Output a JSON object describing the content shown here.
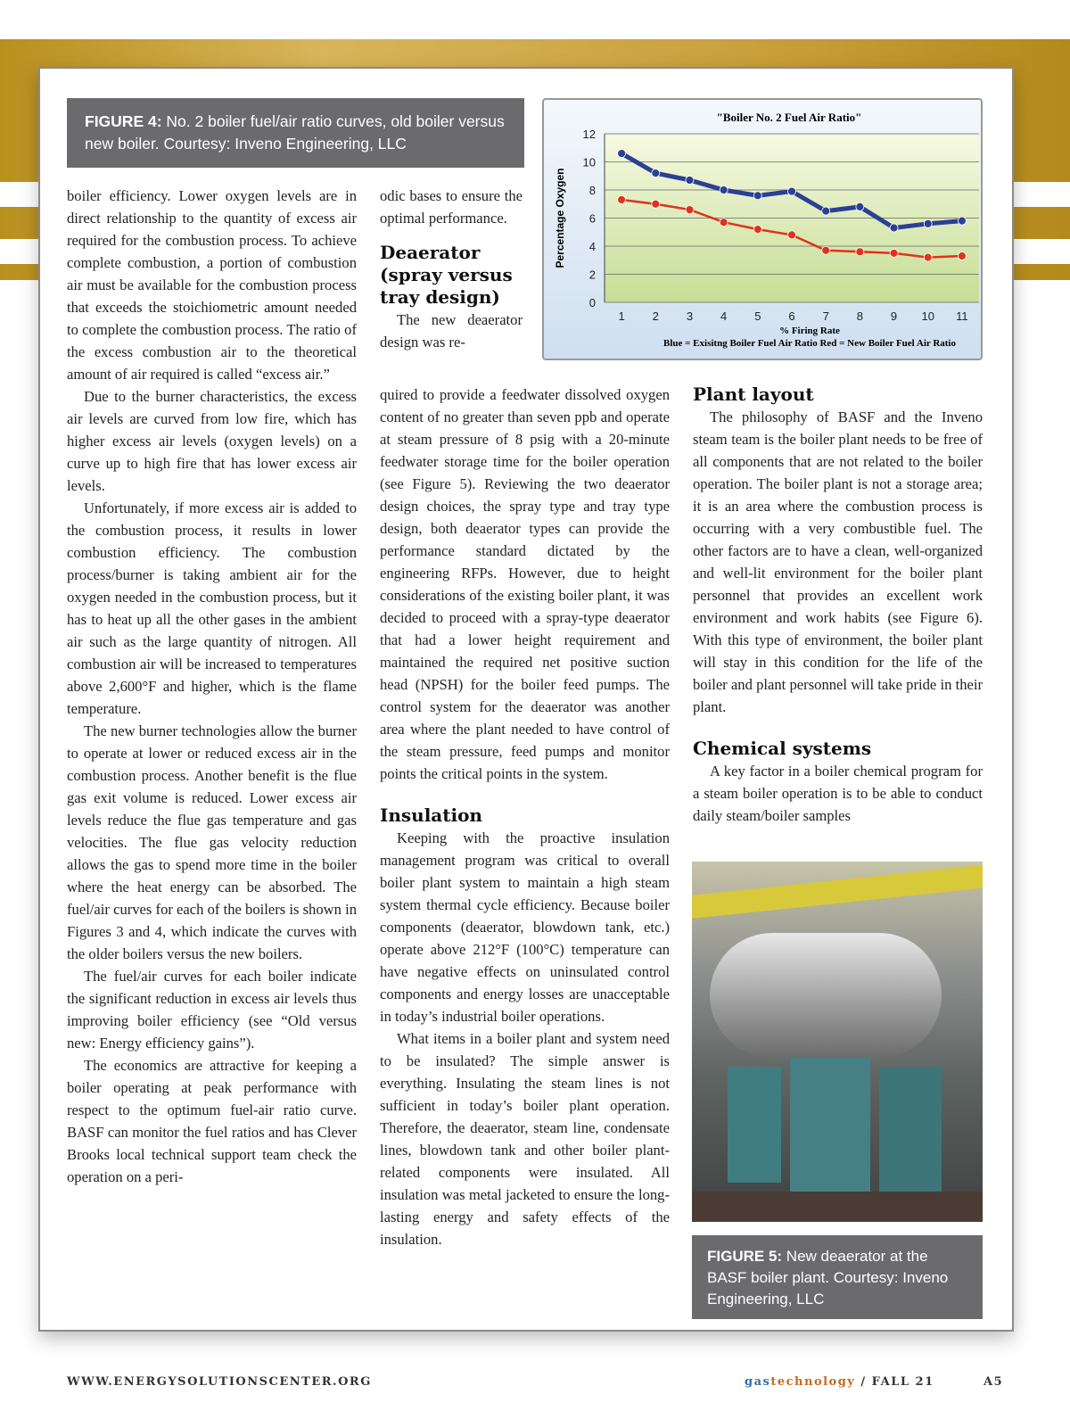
{
  "figure4_caption": {
    "label": "FIGURE 4:",
    "text": " No. 2 boiler fuel/air ratio curves, old boiler versus new boiler. Courtesy: Inveno Engineering, LLC"
  },
  "figure5_caption": {
    "label": "FIGURE 5:",
    "text": " New deaerator at the BASF boiler plant. Courtesy: Inveno Engineering, LLC"
  },
  "chart_data": {
    "type": "line",
    "title": "\"Boiler No. 2 Fuel Air Ratio\"",
    "xlabel": "% Firing Rate",
    "ylabel": "Percentage Oxygen",
    "note": "Blue = Exisitng Boiler Fuel Air Ratio      Red = New Boiler Fuel Air Ratio",
    "categories": [
      1,
      2,
      3,
      4,
      5,
      6,
      7,
      8,
      9,
      10,
      11
    ],
    "ylim": [
      0,
      12
    ],
    "yticks": [
      0,
      2,
      4,
      6,
      8,
      10,
      12
    ],
    "grid": true,
    "series": [
      {
        "color": "#2b3f95",
        "values": [
          10.6,
          9.2,
          8.7,
          8.0,
          7.6,
          7.9,
          6.5,
          6.8,
          5.3,
          5.6,
          5.8
        ]
      },
      {
        "color": "#e0321c",
        "values": [
          7.3,
          7.0,
          6.6,
          5.7,
          5.2,
          4.8,
          3.7,
          3.6,
          3.5,
          3.2,
          3.3
        ]
      }
    ]
  },
  "col1": [
    "boiler efficiency. Lower oxygen levels are in direct relationship to the quantity of excess air required for the combustion process. To achieve complete combustion, a portion of combustion air must be available for the combustion process that exceeds the stoichiometric amount needed to complete the combustion process. The ratio of the excess combustion air to the theoretical amount of air required is called “excess air.”",
    "Due to the burner characteristics, the excess air levels are curved from low fire, which has higher excess air levels (oxygen levels) on a curve up to high fire that has lower excess air levels.",
    "Unfortunately, if more excess air is added to the combustion process, it results in lower combustion efficiency. The combustion process/burner is taking ambient air for the oxygen needed in the combustion process, but it has to heat up all the other gases in the ambient air such as the large quantity of nitrogen. All combustion air will be increased to temperatures above 2,600°F and higher, which is the flame temperature.",
    "The new burner technologies allow the burner to operate at lower or reduced excess air in the combustion process. Another benefit is the flue gas exit volume is reduced. Lower excess air levels reduce the flue gas temperature and gas velocities. The flue gas velocity reduction allows the gas to spend more time in the boiler where the heat energy can be absorbed. The fuel/air curves for each of the boilers is shown in Figures 3 and 4, which indicate the curves with the older boilers versus the new boilers.",
    "The fuel/air curves for each boiler indicate the significant reduction in excess air levels thus improving boiler efficiency (see “Old versus new: Energy efficiency gains”).",
    "The economics are attractive for keeping a boiler operating at peak performance with respect to the optimum fuel-air ratio curve. BASF can monitor the fuel ratios and has Clever Brooks local technical support team check the operation on a peri-"
  ],
  "col2_top": "odic bases to ensure the optimal performance.",
  "deaerator": {
    "heading": "Deaerator (spray versus tray design)",
    "p1a": "The new deaerator design was re-",
    "p1b": "quired to provide a feedwater dissolved oxygen content of no greater than seven ppb and operate at steam pressure of 8 psig with a 20-minute feedwater storage time for the boiler operation (see Figure 5). Reviewing the two deaerator design choices, the spray type and tray type design, both deaerator types can provide the performance standard dictated by the engineering RFPs. However, due to height considerations of the existing boiler plant, it was decided to proceed with a spray-type deaerator that had a lower height requirement and maintained the required net positive suction head (NPSH) for the boiler feed pumps. The control system for the deaerator was another area where the plant needed to have control of the steam pressure, feed pumps and monitor points the critical points in the system."
  },
  "insulation": {
    "heading": "Insulation",
    "paragraphs": [
      "Keeping with the proactive insulation management program was critical to overall boiler plant system to maintain a high steam system thermal cycle efficiency. Because boiler components (deaerator, blowdown tank, etc.) operate above 212°F (100°C) temperature can have negative effects on uninsulated control components and energy losses are unacceptable in today’s industrial boiler operations.",
      "What items in a boiler plant and system need to be insulated? The simple answer is everything. Insulating the steam lines is not sufficient in today’s boiler plant operation. Therefore, the deaerator, steam line, condensate lines, blowdown tank and other boiler plant-related components were insulated. All insulation was metal jacketed to ensure the long-lasting energy and safety effects of the insulation."
    ]
  },
  "plant_layout": {
    "heading": "Plant layout",
    "text": "The philosophy of BASF and the Inveno steam team is the boiler plant needs to be free of all components that are not related to the boiler operation. The boiler plant is not a storage area; it is an area where the combustion process is occurring with a very combustible fuel. The other factors are to have a clean, well-organized and well-lit environment for the boiler plant personnel that provides an excellent work environment and work habits (see Figure 6). With this type of environment, the boiler plant will stay in this condition for the life of the boiler and plant personnel will take pride in their plant."
  },
  "chemical": {
    "heading": "Chemical systems",
    "text": "A key factor in a boiler chemical program for a steam boiler operation is to be able to conduct daily steam/boiler samples"
  },
  "footer": {
    "website": "WWW.ENERGYSOLUTIONSCENTER.ORG",
    "brand_gas": "gas",
    "brand_tech": "technology",
    "issue": " / FALL 21",
    "page": "A5"
  }
}
